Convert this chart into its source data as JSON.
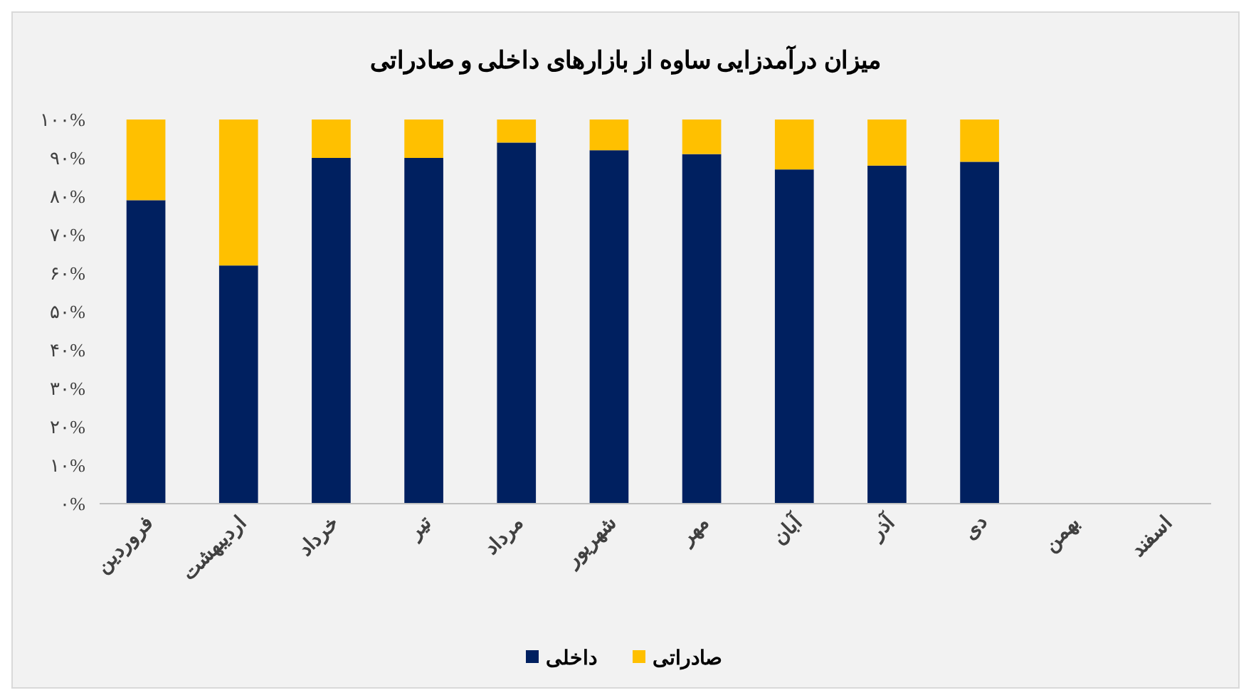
{
  "chart_data": {
    "type": "bar",
    "stacked": true,
    "title": "میزان درآمدزایی ساوه از بازارهای داخلی و صادراتی",
    "categories": [
      "فروردین",
      "اردیبهشت",
      "خرداد",
      "تیر",
      "مرداد",
      "شهریور",
      "مهر",
      "آبان",
      "آذر",
      "دی",
      "بهمن",
      "اسفند"
    ],
    "series": [
      {
        "name": "داخلی",
        "color": "#002060",
        "values": [
          79,
          62,
          90,
          90,
          94,
          92,
          91,
          87,
          88,
          89,
          null,
          null
        ]
      },
      {
        "name": "صادراتی",
        "color": "#ffc000",
        "values": [
          21,
          38,
          10,
          10,
          6,
          8,
          9,
          13,
          12,
          11,
          null,
          null
        ]
      }
    ],
    "ylim": [
      0,
      100
    ],
    "yticks": [
      {
        "value": 0,
        "label": "۰%"
      },
      {
        "value": 10,
        "label": "۱۰%"
      },
      {
        "value": 20,
        "label": "۲۰%"
      },
      {
        "value": 30,
        "label": "۳۰%"
      },
      {
        "value": 40,
        "label": "۴۰%"
      },
      {
        "value": 50,
        "label": "۵۰%"
      },
      {
        "value": 60,
        "label": "۶۰%"
      },
      {
        "value": 70,
        "label": "۷۰%"
      },
      {
        "value": 80,
        "label": "۸۰%"
      },
      {
        "value": 90,
        "label": "۹۰%"
      },
      {
        "value": 100,
        "label": "۱۰۰%"
      }
    ],
    "grid": false,
    "legend": "bottom"
  }
}
